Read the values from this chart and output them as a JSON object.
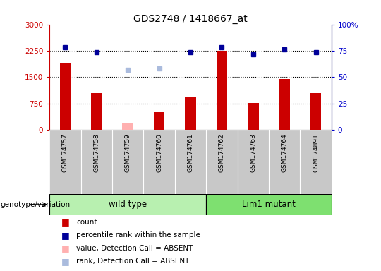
{
  "title": "GDS2748 / 1418667_at",
  "samples": [
    "GSM174757",
    "GSM174758",
    "GSM174759",
    "GSM174760",
    "GSM174761",
    "GSM174762",
    "GSM174763",
    "GSM174764",
    "GSM174891"
  ],
  "counts": [
    1900,
    1050,
    null,
    500,
    950,
    2250,
    775,
    1450,
    1050
  ],
  "counts_absent": [
    null,
    null,
    200,
    null,
    null,
    null,
    null,
    null,
    null
  ],
  "percentile_ranks": [
    2350,
    2200,
    null,
    null,
    2200,
    2350,
    2150,
    2300,
    2200
  ],
  "percentile_ranks_absent": [
    null,
    null,
    1700,
    1750,
    null,
    null,
    null,
    null,
    null
  ],
  "wt_group": [
    0,
    1,
    2,
    3,
    4
  ],
  "lm_group": [
    5,
    6,
    7,
    8
  ],
  "wt_label": "wild type",
  "lm_label": "Lim1 mutant",
  "group_color_light": "#B8F0B0",
  "group_color": "#7EE070",
  "ylim_left": [
    0,
    3000
  ],
  "ylim_right": [
    0,
    100
  ],
  "yticks_left": [
    0,
    750,
    1500,
    2250,
    3000
  ],
  "yticks_right": [
    0,
    25,
    50,
    75,
    100
  ],
  "ytick_labels_left": [
    "0",
    "750",
    "1500",
    "2250",
    "3000"
  ],
  "ytick_labels_right": [
    "0",
    "25",
    "50",
    "75",
    "100%"
  ],
  "hlines": [
    750,
    1500,
    2250
  ],
  "bar_color": "#CC0000",
  "bar_absent_color": "#FFB0B0",
  "marker_color": "#000099",
  "marker_absent_color": "#AABBDD",
  "left_tick_color": "#CC0000",
  "right_tick_color": "#0000CC",
  "bg_xaxis": "#C8C8C8",
  "bar_width": 0.35,
  "marker_size": 5,
  "geno_label": "genotype/variation",
  "legend": [
    {
      "color": "#CC0000",
      "label": "count"
    },
    {
      "color": "#000099",
      "label": "percentile rank within the sample"
    },
    {
      "color": "#FFB0B0",
      "label": "value, Detection Call = ABSENT"
    },
    {
      "color": "#AABBDD",
      "label": "rank, Detection Call = ABSENT"
    }
  ]
}
